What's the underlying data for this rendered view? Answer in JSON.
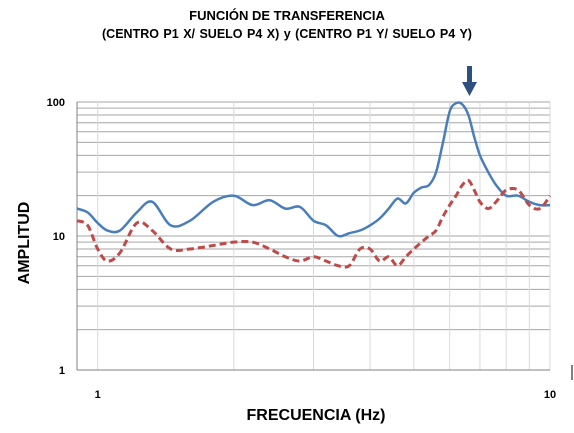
{
  "chart_data": {
    "type": "line",
    "title": "FUNCIÓN DE TRANSFERENCIA",
    "subtitle": "(CENTRO P1  X/ SUELO  P4 X)   y   (CENTRO P1  Y/ SUELO  P4 Y)",
    "xlabel": "FRECUENCIA (Hz)",
    "ylabel": "AMPLITUD",
    "x_scale": "log",
    "y_scale": "log",
    "xlim": [
      0.9,
      10
    ],
    "ylim": [
      1,
      100
    ],
    "x_ticks": [
      "1",
      "10"
    ],
    "y_ticks": [
      "100",
      "10",
      "1"
    ],
    "grid": "horizontal",
    "legend": "none",
    "annotation": "arrow marking the peak at ~7.1 Hz",
    "series": [
      {
        "color": "#4a7ebb",
        "style": "solid",
        "x": [
          0.9,
          0.95,
          1.0,
          1.05,
          1.12,
          1.22,
          1.32,
          1.45,
          1.6,
          1.8,
          2.0,
          2.2,
          2.4,
          2.6,
          2.8,
          3.0,
          3.2,
          3.4,
          3.6,
          3.8,
          4.0,
          4.2,
          4.4,
          4.6,
          4.8,
          5.0,
          5.2,
          5.4,
          5.6,
          5.8,
          6.0,
          6.2,
          6.4,
          6.6,
          6.8,
          7.0,
          7.3,
          7.6,
          8.0,
          8.5,
          9.0,
          9.5,
          10.0
        ],
        "y": [
          16,
          15,
          12.5,
          11,
          11,
          15,
          18,
          12,
          13,
          18,
          20,
          17,
          18.5,
          16,
          16.5,
          13,
          12,
          10,
          10.5,
          11,
          12,
          13.5,
          16,
          19,
          17.5,
          21,
          23,
          24,
          30,
          50,
          85,
          98,
          96,
          80,
          55,
          40,
          30,
          24,
          20,
          20,
          18,
          17,
          17
        ]
      },
      {
        "color": "#be4b48",
        "style": "dashed",
        "x": [
          0.9,
          0.95,
          1.0,
          1.05,
          1.12,
          1.22,
          1.32,
          1.45,
          1.6,
          1.8,
          2.0,
          2.2,
          2.4,
          2.6,
          2.8,
          3.0,
          3.2,
          3.4,
          3.6,
          3.8,
          4.0,
          4.2,
          4.4,
          4.6,
          4.8,
          5.0,
          5.2,
          5.4,
          5.6,
          5.8,
          6.0,
          6.2,
          6.4,
          6.6,
          6.8,
          7.0,
          7.3,
          7.6,
          8.0,
          8.5,
          9.0,
          9.5,
          10.0
        ],
        "y": [
          13,
          12,
          8,
          6.5,
          7.5,
          12.5,
          11,
          8,
          8,
          8.5,
          9,
          9,
          8,
          7,
          6.5,
          7,
          6.5,
          6,
          6,
          8,
          8,
          6.5,
          7,
          6,
          7,
          8,
          9,
          10,
          11,
          14,
          17,
          20,
          24,
          26,
          22,
          18,
          16,
          18,
          22,
          22,
          17,
          16,
          20
        ]
      }
    ]
  }
}
